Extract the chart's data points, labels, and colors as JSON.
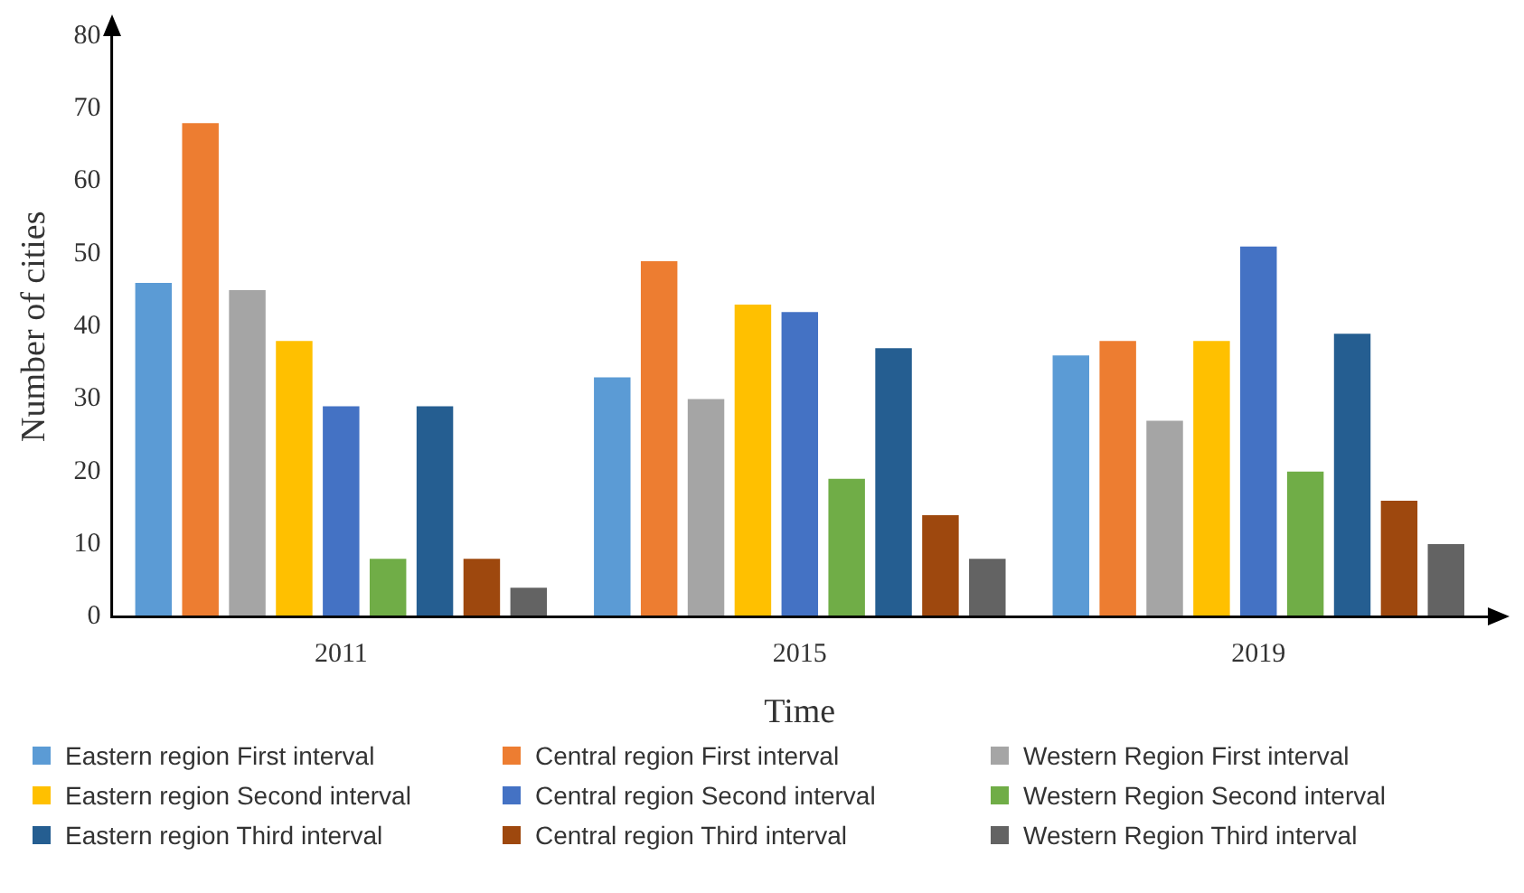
{
  "chart_data": {
    "type": "bar",
    "xlabel": "Time",
    "ylabel": "Number of cities",
    "categories": [
      "2011",
      "2015",
      "2019"
    ],
    "ylim": [
      0,
      80
    ],
    "yticks": [
      0,
      10,
      20,
      30,
      40,
      50,
      60,
      70,
      80
    ],
    "grid": false,
    "legend": "bottom",
    "series": [
      {
        "name": "Eastern region First interval",
        "color": "#5b9bd5",
        "values": [
          46,
          33,
          36
        ]
      },
      {
        "name": "Central region First interval",
        "color": "#ed7d31",
        "values": [
          68,
          49,
          38
        ]
      },
      {
        "name": "Western Region First interval",
        "color": "#a5a5a5",
        "values": [
          45,
          30,
          27
        ]
      },
      {
        "name": "Eastern region Second interval",
        "color": "#ffc000",
        "values": [
          38,
          43,
          38
        ]
      },
      {
        "name": "Central region Second interval",
        "color": "#4472c4",
        "values": [
          29,
          42,
          51
        ]
      },
      {
        "name": "Western Region Second interval",
        "color": "#70ad47",
        "values": [
          8,
          19,
          20
        ]
      },
      {
        "name": "Eastern region Third interval",
        "color": "#255e91",
        "values": [
          29,
          37,
          39
        ]
      },
      {
        "name": "Central region Third interval",
        "color": "#9e480e",
        "values": [
          8,
          14,
          16
        ]
      },
      {
        "name": "Western Region Third interval",
        "color": "#636363",
        "values": [
          4,
          8,
          10
        ]
      }
    ]
  }
}
